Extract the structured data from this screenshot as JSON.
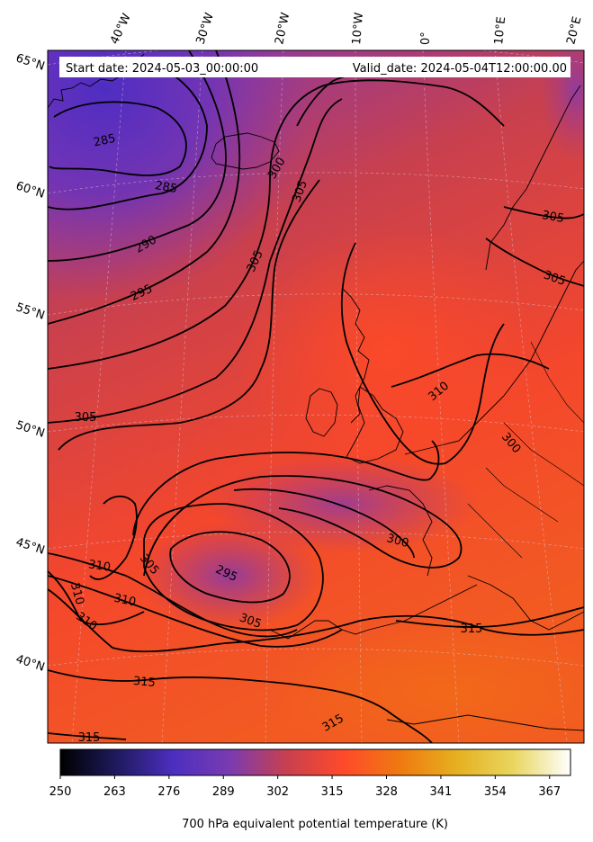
{
  "header": {
    "start_date": "Start date: 2024-05-03_00:00:00",
    "valid_date": "Valid_date: 2024-05-04T12:00:00.00"
  },
  "map": {
    "field": "700 hPa equivalent potential temperature",
    "colormap": "CMRmap-like (black-indigo-purple-red-orange-yellow-white)",
    "contour_color": "#000000",
    "coastline_color": "#000000",
    "gridline_style": "dashed light grey"
  },
  "longitude_labels": [
    "40°W",
    "30°W",
    "20°W",
    "10°W",
    "0°",
    "10°E",
    "20°E"
  ],
  "latitude_labels": [
    "65°N",
    "60°N",
    "55°N",
    "50°N",
    "45°N",
    "40°N"
  ],
  "contour_labels": [
    "285",
    "285",
    "290",
    "295",
    "300",
    "305",
    "305",
    "305",
    "305",
    "310",
    "300",
    "300",
    "305",
    "295",
    "305",
    "310",
    "310",
    "310",
    "310",
    "315",
    "315",
    "315",
    "315",
    "305"
  ],
  "colorbar": {
    "ticks": [
      "250",
      "263",
      "276",
      "289",
      "302",
      "315",
      "328",
      "341",
      "354",
      "367"
    ],
    "range": [
      250,
      372
    ],
    "label": "700 hPa equivalent potential temperature (K)",
    "colors": [
      "#000000",
      "#1f1a5e",
      "#4c2fc0",
      "#7a3bb0",
      "#c9404f",
      "#ff4a2a",
      "#ef7a10",
      "#e6b020",
      "#e9d660",
      "#ffffff"
    ]
  }
}
